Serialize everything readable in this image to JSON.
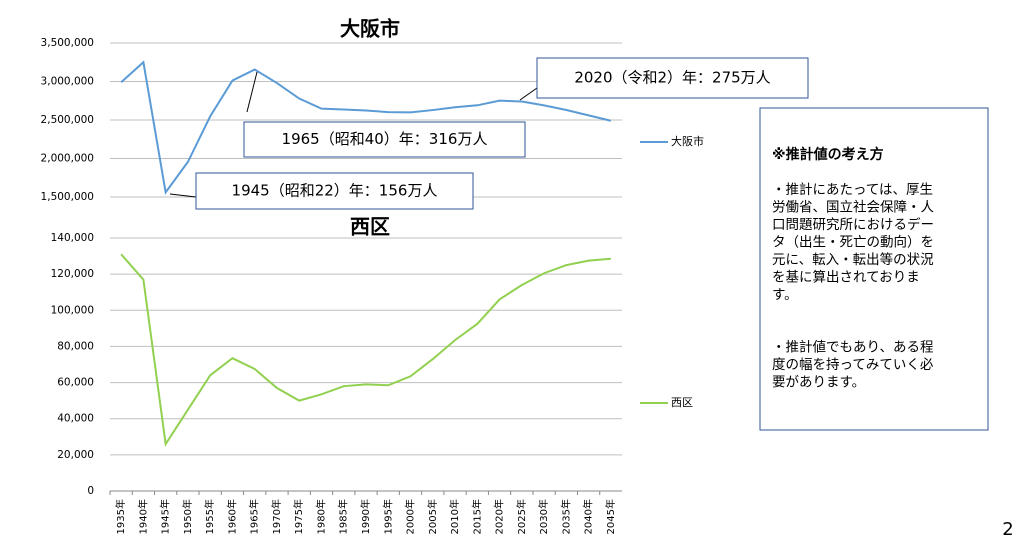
{
  "chart_data": [
    {
      "type": "line",
      "title": "大阪市",
      "series": [
        {
          "name": "大阪市",
          "color": "#5b9bd5",
          "values": [
            2990000,
            3250000,
            1560000,
            1956000,
            2547000,
            3012000,
            3156000,
            2980000,
            2779000,
            2648000,
            2636000,
            2624000,
            2602000,
            2599000,
            2629000,
            2665000,
            2691000,
            2752000,
            2740000,
            2690000,
            2630000,
            2560000,
            2490000
          ]
        }
      ],
      "ylim": [
        1500000,
        3500000
      ],
      "yticks": [
        {
          "value": 1500000,
          "label": "1,500,000"
        },
        {
          "value": 2000000,
          "label": "2,000,000"
        },
        {
          "value": 2500000,
          "label": "2,500,000"
        },
        {
          "value": 3000000,
          "label": "3,000,000"
        },
        {
          "value": 3500000,
          "label": "3,500,000"
        }
      ],
      "grid": true,
      "annotations": [
        "2020（令和2）年：275万人",
        "1965（昭和40）年：316万人",
        "1945（昭和22）年：156万人"
      ]
    },
    {
      "type": "line",
      "title": "西区",
      "categories": [
        "1935年",
        "1940年",
        "1945年",
        "1950年",
        "1955年",
        "1960年",
        "1965年",
        "1970年",
        "1975年",
        "1980年",
        "1985年",
        "1990年",
        "1995年",
        "2000年",
        "2005年",
        "2010年",
        "2015年",
        "2020年",
        "2025年",
        "2030年",
        "2035年",
        "2040年",
        "2045年"
      ],
      "series": [
        {
          "name": "西区",
          "color": "#92d050",
          "values": [
            131000,
            117000,
            26000,
            45000,
            64000,
            73500,
            67500,
            57000,
            50000,
            53500,
            58000,
            59000,
            58500,
            63500,
            73000,
            83500,
            92500,
            106000,
            114000,
            120500,
            125000,
            127500,
            128500
          ]
        }
      ],
      "ylim": [
        0,
        140000
      ],
      "yticks": [
        0,
        {
          "value": 20000,
          "label": "20,000"
        },
        {
          "value": 40000,
          "label": "40,000"
        },
        {
          "value": 60000,
          "label": "60,000"
        },
        {
          "value": 80000,
          "label": "80,000"
        },
        {
          "value": 100000,
          "label": "100,000"
        },
        {
          "value": 120000,
          "label": "120,000"
        },
        {
          "value": 140000,
          "label": "140,000"
        }
      ],
      "grid": true
    }
  ],
  "note": {
    "title": "※推計値の考え方",
    "paragraphs": [
      [
        "・推計にあたっては、厚生",
        "労働省、国立社会保障・人",
        "口問題研究所におけるデー",
        "タ（出生・死亡の動向）を",
        "元に、転入・転出等の状況",
        "を基に算出されておりま",
        "す。"
      ],
      [
        "・推計値でもあり、ある程",
        "度の幅を持ってみていく必",
        "要があります。"
      ]
    ]
  },
  "page_number": "2"
}
